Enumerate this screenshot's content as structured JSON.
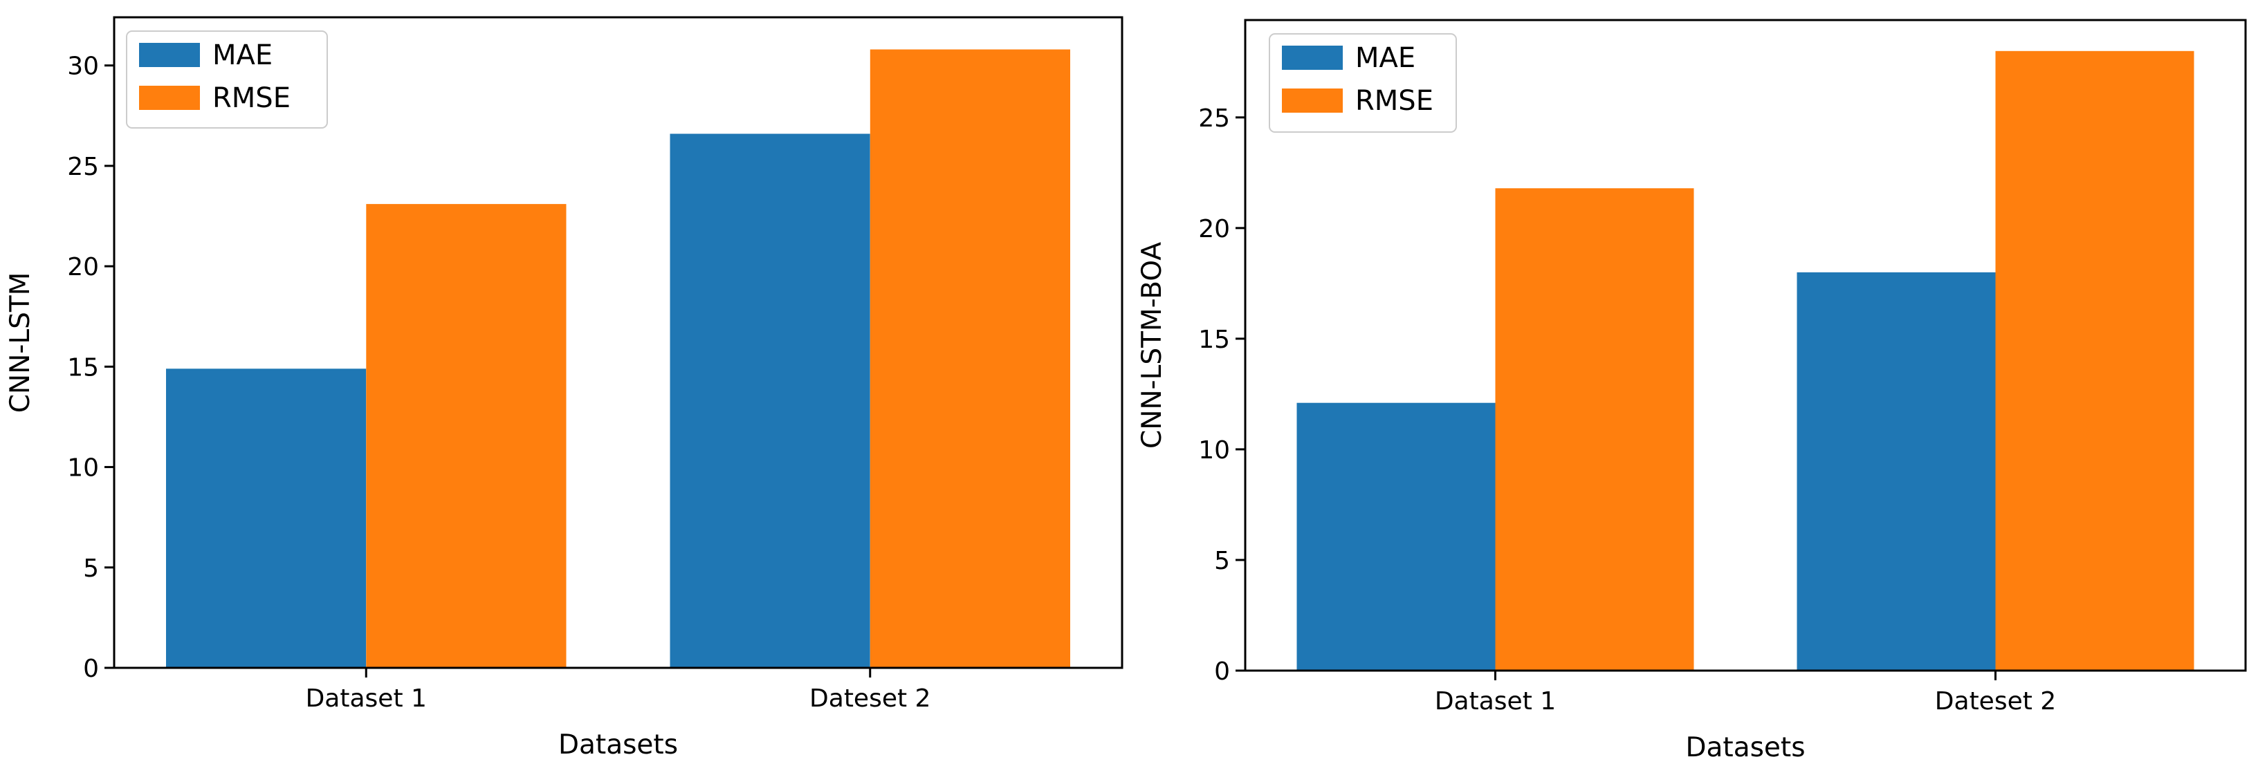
{
  "colors": {
    "series_0": "#1f77b4",
    "series_1": "#ff7f0e",
    "axis": "#000000"
  },
  "chart_data": [
    {
      "type": "bar",
      "title": "",
      "categories": [
        "Dataset 1",
        "Dateset 2"
      ],
      "series": [
        {
          "name": "MAE",
          "values": [
            14.9,
            26.6
          ]
        },
        {
          "name": "RMSE",
          "values": [
            23.1,
            30.8
          ]
        }
      ],
      "xlabel": "Datasets",
      "ylabel": "CNN-LSTM",
      "ylim": [
        0,
        32.4
      ],
      "yticks": [
        0,
        5,
        10,
        15,
        20,
        25,
        30
      ],
      "grid": false,
      "legend": "top-left"
    },
    {
      "type": "bar",
      "title": "",
      "categories": [
        "Dataset 1",
        "Dateset 2"
      ],
      "series": [
        {
          "name": "MAE",
          "values": [
            12.1,
            18.0
          ]
        },
        {
          "name": "RMSE",
          "values": [
            21.8,
            28.0
          ]
        }
      ],
      "xlabel": "Datasets",
      "ylabel": "CNN-LSTM-BOA",
      "ylim": [
        0,
        29.4
      ],
      "yticks": [
        0,
        5,
        10,
        15,
        20,
        25
      ],
      "grid": false,
      "legend": "top-left"
    }
  ]
}
